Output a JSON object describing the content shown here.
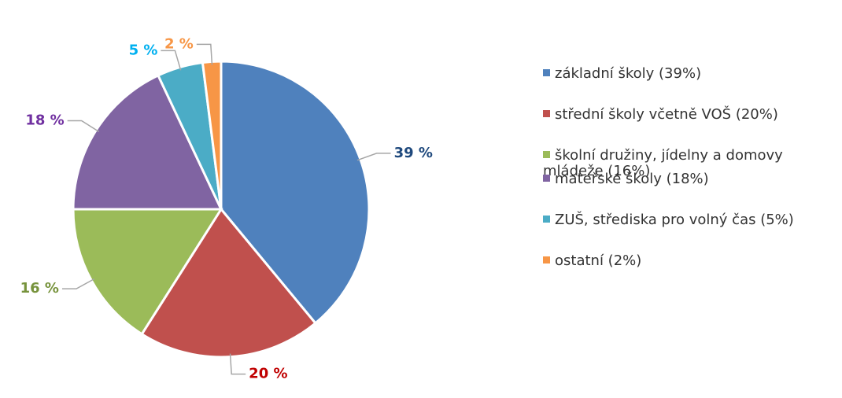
{
  "chart_data": {
    "type": "pie",
    "categories": [
      "základní školy (39%)",
      "střední školy včetně VOŠ (20%)",
      "školní družiny, jídelny a domovy mládeže (16%)",
      "mateřské školy (18%)",
      "ZUŠ, střediska pro volný čas (5%)",
      "ostatní (2%)"
    ],
    "values": [
      39,
      20,
      16,
      18,
      5,
      2
    ],
    "value_labels": [
      "39 %",
      "20 %",
      "16 %",
      "18 %",
      "5 %",
      "2 %"
    ],
    "colors": [
      "#4f81bd",
      "#c0504d",
      "#9bbb59",
      "#8064a2",
      "#4bacc6",
      "#f79646"
    ],
    "label_colors": [
      "#1f497d",
      "#c00000",
      "#77933c",
      "#7030a0",
      "#00b0f0",
      "#f79646"
    ],
    "legend": "right"
  }
}
